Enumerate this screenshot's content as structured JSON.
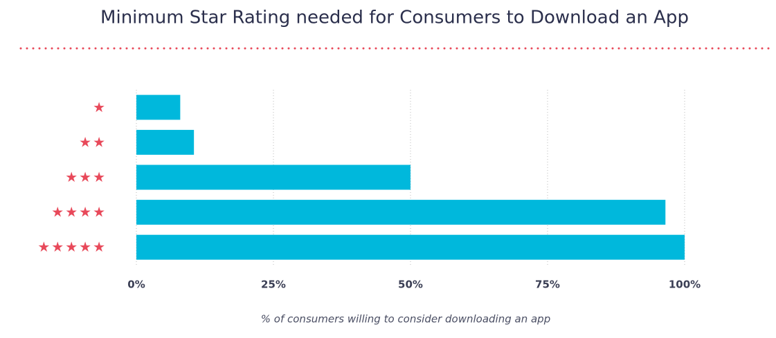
{
  "chart_data": {
    "type": "bar",
    "orientation": "horizontal",
    "title": "Minimum Star Rating needed for Consumers to Download an App",
    "x_label": "% of consumers willing to consider downloading an app",
    "categories": [
      "★",
      "★★",
      "★★★",
      "★★★★",
      "★★★★★"
    ],
    "values": [
      8,
      10.5,
      50,
      96.5,
      100
    ],
    "color": "#00b8dc",
    "category_color": "#e8495a",
    "xlim": [
      0,
      100
    ],
    "xticks": [
      {
        "value": 0,
        "label": "0%"
      },
      {
        "value": 25,
        "label": "25%"
      },
      {
        "value": 50,
        "label": "50%"
      },
      {
        "value": 75,
        "label": "75%"
      },
      {
        "value": 100,
        "label": "100%"
      }
    ],
    "grid": true
  }
}
